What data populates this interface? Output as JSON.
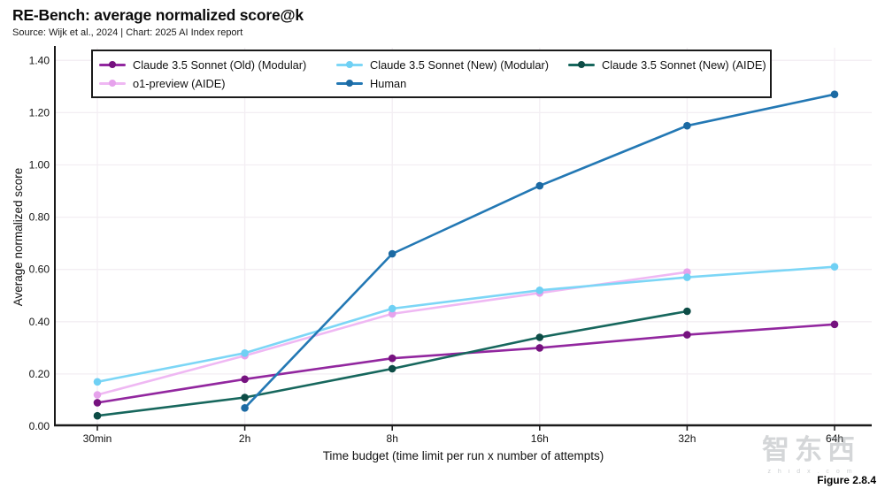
{
  "header": {
    "title": "RE-Bench: average normalized score@k",
    "source": "Source: Wijk et al., 2024 | Chart: 2025 AI Index report"
  },
  "chart_data": {
    "type": "line",
    "title": "RE-Bench: average normalized score@k",
    "categories": [
      "30min",
      "2h",
      "8h",
      "16h",
      "32h",
      "64h"
    ],
    "xlabel": "Time budget (time limit per run x number of attempts)",
    "ylabel": "Average normalized score",
    "ylim": [
      0,
      1.4
    ],
    "yticks": [
      "0.00",
      "0.20",
      "0.40",
      "0.60",
      "0.80",
      "1.00",
      "1.20",
      "1.40"
    ],
    "grid": true,
    "legend_position": "top-inside",
    "series": [
      {
        "name": "Claude 3.5 Sonnet (Old) (Modular)",
        "color": "#92279f",
        "dot_color": "#76127f",
        "values": [
          0.09,
          0.18,
          0.26,
          0.3,
          0.35,
          0.39
        ]
      },
      {
        "name": "Claude 3.5 Sonnet (New) (Modular)",
        "color": "#7cd6f6",
        "dot_color": "#6fd0f4",
        "values": [
          0.17,
          0.28,
          0.45,
          0.52,
          0.57,
          0.61
        ]
      },
      {
        "name": "Claude 3.5 Sonnet (New) (AIDE)",
        "color": "#17675d",
        "dot_color": "#0d4c46",
        "values": [
          0.04,
          0.11,
          0.22,
          0.34,
          0.44,
          null
        ]
      },
      {
        "name": "o1-preview (AIDE)",
        "color": "#efb8f3",
        "dot_color": "#e6a2ec",
        "values": [
          0.12,
          0.27,
          0.43,
          0.51,
          0.59,
          null
        ]
      },
      {
        "name": "Human",
        "color": "#2378b4",
        "dot_color": "#1c6aa3",
        "values": [
          null,
          0.07,
          0.66,
          0.92,
          1.15,
          1.27
        ]
      }
    ],
    "colors": {
      "axis": "#1a1a1a",
      "grid": "#f3eef3",
      "text": "#111111"
    }
  },
  "watermark": {
    "logo_text": "智东西",
    "sub_text": "z h i d x . c o m"
  },
  "footer": {
    "figure_label": "Figure 2.8.4"
  }
}
